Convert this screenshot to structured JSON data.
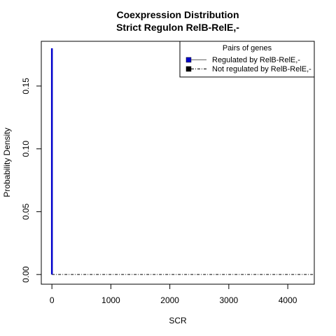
{
  "chart_data": {
    "type": "line",
    "title": "Coexpression Distribution",
    "subtitle": "Strict Regulon RelB-RelE,-",
    "xlabel": "SCR",
    "ylabel": "Probability Density",
    "xlim": [
      -180,
      4450
    ],
    "ylim": [
      -0.0077,
      0.1856
    ],
    "x_ticks": [
      0,
      1000,
      2000,
      3000,
      4000
    ],
    "x_tick_labels": [
      "0",
      "1000",
      "2000",
      "3000",
      "4000"
    ],
    "y_ticks": [
      0.0,
      0.05,
      0.1,
      0.15
    ],
    "y_tick_labels": [
      "0.00",
      "0.05",
      "0.10",
      "0.15"
    ],
    "grid": false,
    "legend": {
      "title": "Pairs of genes",
      "position": "top-right",
      "entries": [
        "Regulated by  RelB-RelE,-",
        "Not regulated by  RelB-RelE,-"
      ]
    },
    "series": [
      {
        "name": "Regulated by  RelB-RelE,-",
        "color": "#0000cc",
        "line_style": "solid",
        "x": [
          0,
          0,
          0
        ],
        "y": [
          0,
          0.18,
          0
        ]
      },
      {
        "name": "Not regulated by  RelB-RelE,-",
        "color": "#000000",
        "line_style": "dotdash",
        "x": [
          0,
          4450
        ],
        "y": [
          0,
          0
        ]
      }
    ]
  }
}
